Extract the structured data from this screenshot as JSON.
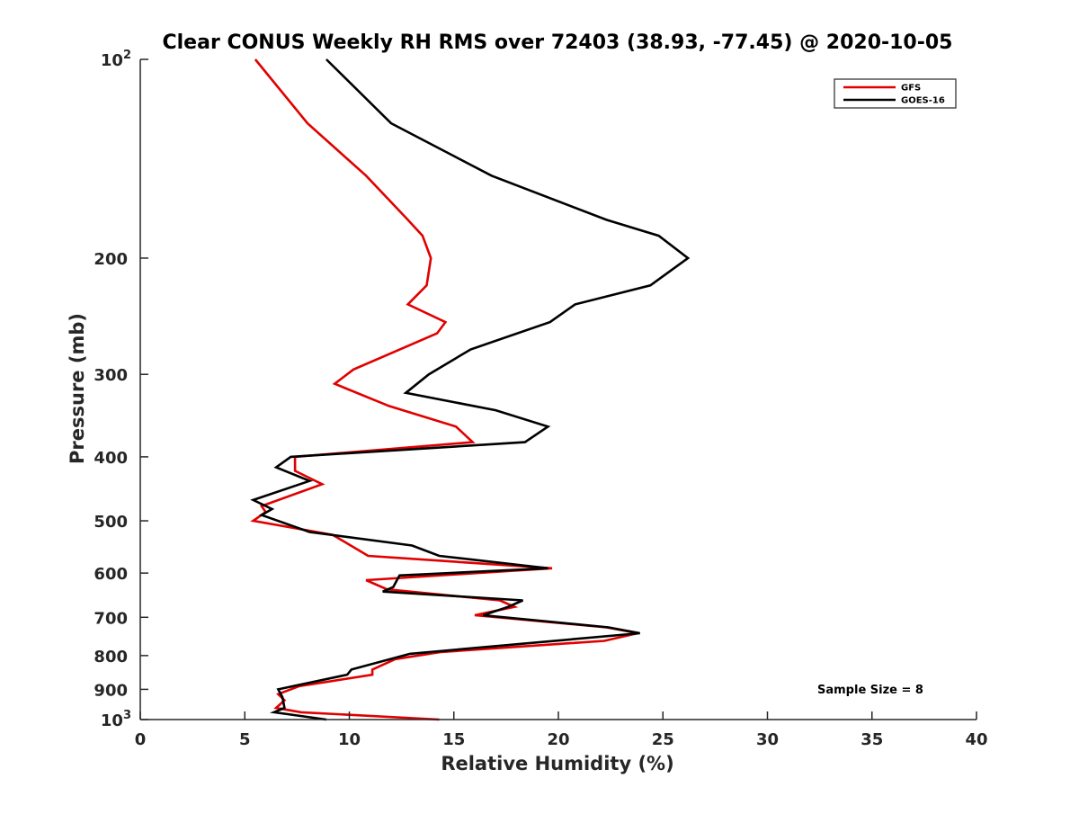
{
  "chart_data": {
    "type": "line",
    "title": "Clear CONUS Weekly RH RMS over 72403 (38.93, -77.45) @ 2020-10-05",
    "xlabel": "Relative Humidity (%)",
    "ylabel": "Pressure (mb)",
    "xlim": [
      0,
      40
    ],
    "ylim": [
      100,
      1000
    ],
    "y_scale": "log",
    "y_direction": "reversed",
    "x_ticks": [
      0,
      5,
      10,
      15,
      20,
      25,
      30,
      35,
      40
    ],
    "y_ticks": [
      {
        "value": 100,
        "label": "10",
        "exp": "2"
      },
      {
        "value": 200,
        "label": "200"
      },
      {
        "value": 300,
        "label": "300"
      },
      {
        "value": 400,
        "label": "400"
      },
      {
        "value": 500,
        "label": "500"
      },
      {
        "value": 600,
        "label": "600"
      },
      {
        "value": 700,
        "label": "700"
      },
      {
        "value": 800,
        "label": "800"
      },
      {
        "value": 900,
        "label": "900"
      },
      {
        "value": 1000,
        "label": "10",
        "exp": "3"
      }
    ],
    "grid": false,
    "legend_position": "top-right",
    "annotation": "Sample Size = 8",
    "series": [
      {
        "name": "GFS",
        "color": "#e00000",
        "points": [
          [
            5.5,
            100
          ],
          [
            8.0,
            125
          ],
          [
            10.8,
            150
          ],
          [
            12.8,
            175
          ],
          [
            13.5,
            185
          ],
          [
            13.9,
            200
          ],
          [
            13.7,
            220
          ],
          [
            12.8,
            235
          ],
          [
            14.6,
            250
          ],
          [
            14.2,
            260
          ],
          [
            10.2,
            295
          ],
          [
            9.3,
            310
          ],
          [
            11.9,
            335
          ],
          [
            15.1,
            360
          ],
          [
            15.9,
            380
          ],
          [
            7.4,
            400
          ],
          [
            7.4,
            420
          ],
          [
            8.7,
            440
          ],
          [
            5.8,
            475
          ],
          [
            6.0,
            485
          ],
          [
            5.4,
            500
          ],
          [
            9.2,
            525
          ],
          [
            10.9,
            565
          ],
          [
            19.7,
            590
          ],
          [
            10.8,
            615
          ],
          [
            11.8,
            635
          ],
          [
            17.2,
            660
          ],
          [
            17.9,
            675
          ],
          [
            16.0,
            695
          ],
          [
            22.3,
            725
          ],
          [
            23.8,
            740
          ],
          [
            22.2,
            760
          ],
          [
            14.4,
            790
          ],
          [
            12.2,
            810
          ],
          [
            11.1,
            840
          ],
          [
            11.1,
            855
          ],
          [
            7.6,
            890
          ],
          [
            6.6,
            915
          ],
          [
            6.9,
            935
          ],
          [
            6.5,
            960
          ],
          [
            7.7,
            975
          ],
          [
            14.3,
            1000
          ]
        ]
      },
      {
        "name": "GOES-16",
        "color": "#000000",
        "points": [
          [
            8.9,
            100
          ],
          [
            12.0,
            125
          ],
          [
            16.8,
            150
          ],
          [
            22.3,
            175
          ],
          [
            24.8,
            185
          ],
          [
            26.2,
            200
          ],
          [
            24.4,
            220
          ],
          [
            20.8,
            235
          ],
          [
            19.6,
            250
          ],
          [
            15.8,
            275
          ],
          [
            13.8,
            300
          ],
          [
            12.7,
            320
          ],
          [
            17.0,
            340
          ],
          [
            19.5,
            360
          ],
          [
            18.4,
            380
          ],
          [
            7.2,
            400
          ],
          [
            6.5,
            415
          ],
          [
            8.1,
            435
          ],
          [
            5.4,
            465
          ],
          [
            6.3,
            480
          ],
          [
            5.8,
            490
          ],
          [
            8.1,
            520
          ],
          [
            13.0,
            545
          ],
          [
            14.3,
            565
          ],
          [
            19.5,
            590
          ],
          [
            12.4,
            605
          ],
          [
            12.1,
            630
          ],
          [
            11.6,
            640
          ],
          [
            18.3,
            660
          ],
          [
            17.6,
            675
          ],
          [
            16.4,
            695
          ],
          [
            22.4,
            725
          ],
          [
            23.9,
            740
          ],
          [
            12.9,
            795
          ],
          [
            10.1,
            840
          ],
          [
            9.9,
            855
          ],
          [
            6.6,
            900
          ],
          [
            6.8,
            925
          ],
          [
            6.9,
            960
          ],
          [
            6.4,
            975
          ],
          [
            8.9,
            1000
          ]
        ]
      }
    ]
  }
}
